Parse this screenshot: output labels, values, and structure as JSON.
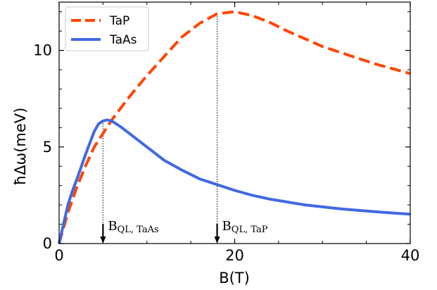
{
  "chart_data": {
    "type": "line",
    "xlabel": "B(T)",
    "ylabel": "ħΔω(meV)",
    "xlim": [
      0,
      40
    ],
    "ylim": [
      0,
      12.5
    ],
    "xticks": [
      0,
      20,
      40
    ],
    "yticks": [
      0,
      5,
      10
    ],
    "minor_xticks": [
      5,
      10,
      15,
      25,
      30,
      35
    ],
    "minor_yticks": [
      1,
      2,
      3,
      4,
      6,
      7,
      8,
      9,
      11,
      12
    ],
    "grid": false,
    "legend_position": "top-left",
    "series": [
      {
        "name": "TaP",
        "style": "dashed",
        "color": "#ff4500",
        "x": [
          0,
          1,
          2,
          3,
          4,
          5,
          6,
          7,
          8,
          10,
          12,
          14,
          16,
          18,
          20,
          22,
          24,
          26,
          28,
          30,
          32,
          34,
          36,
          38,
          40
        ],
        "y": [
          0,
          1.6,
          2.9,
          4.0,
          5.0,
          5.7,
          6.4,
          7.0,
          7.6,
          8.7,
          9.7,
          10.7,
          11.4,
          11.9,
          12.0,
          11.8,
          11.45,
          11.0,
          10.6,
          10.2,
          9.9,
          9.6,
          9.3,
          9.05,
          8.8
        ]
      },
      {
        "name": "TaAs",
        "style": "solid",
        "color": "#4169e1",
        "x": [
          0,
          0.5,
          1,
          1.5,
          2,
          3,
          4,
          4.5,
          5,
          5.5,
          6,
          7,
          8,
          10,
          12,
          14,
          16,
          18,
          20,
          22,
          24,
          26,
          28,
          30,
          32,
          34,
          36,
          38,
          40
        ],
        "y": [
          0,
          1.0,
          2.0,
          2.7,
          3.3,
          4.6,
          5.8,
          6.2,
          6.35,
          6.4,
          6.35,
          6.05,
          5.7,
          5.0,
          4.3,
          3.8,
          3.35,
          3.05,
          2.75,
          2.5,
          2.3,
          2.15,
          2.0,
          1.9,
          1.8,
          1.72,
          1.65,
          1.58,
          1.52
        ]
      }
    ],
    "annotations": [
      {
        "x": 5,
        "main": "B",
        "sub": "QL, TaAs"
      },
      {
        "x": 18,
        "main": "B",
        "sub": "QL, TaP"
      }
    ],
    "vlines": [
      {
        "x": 5,
        "y_top": 6.35
      },
      {
        "x": 18,
        "y_top": 11.9
      }
    ]
  }
}
